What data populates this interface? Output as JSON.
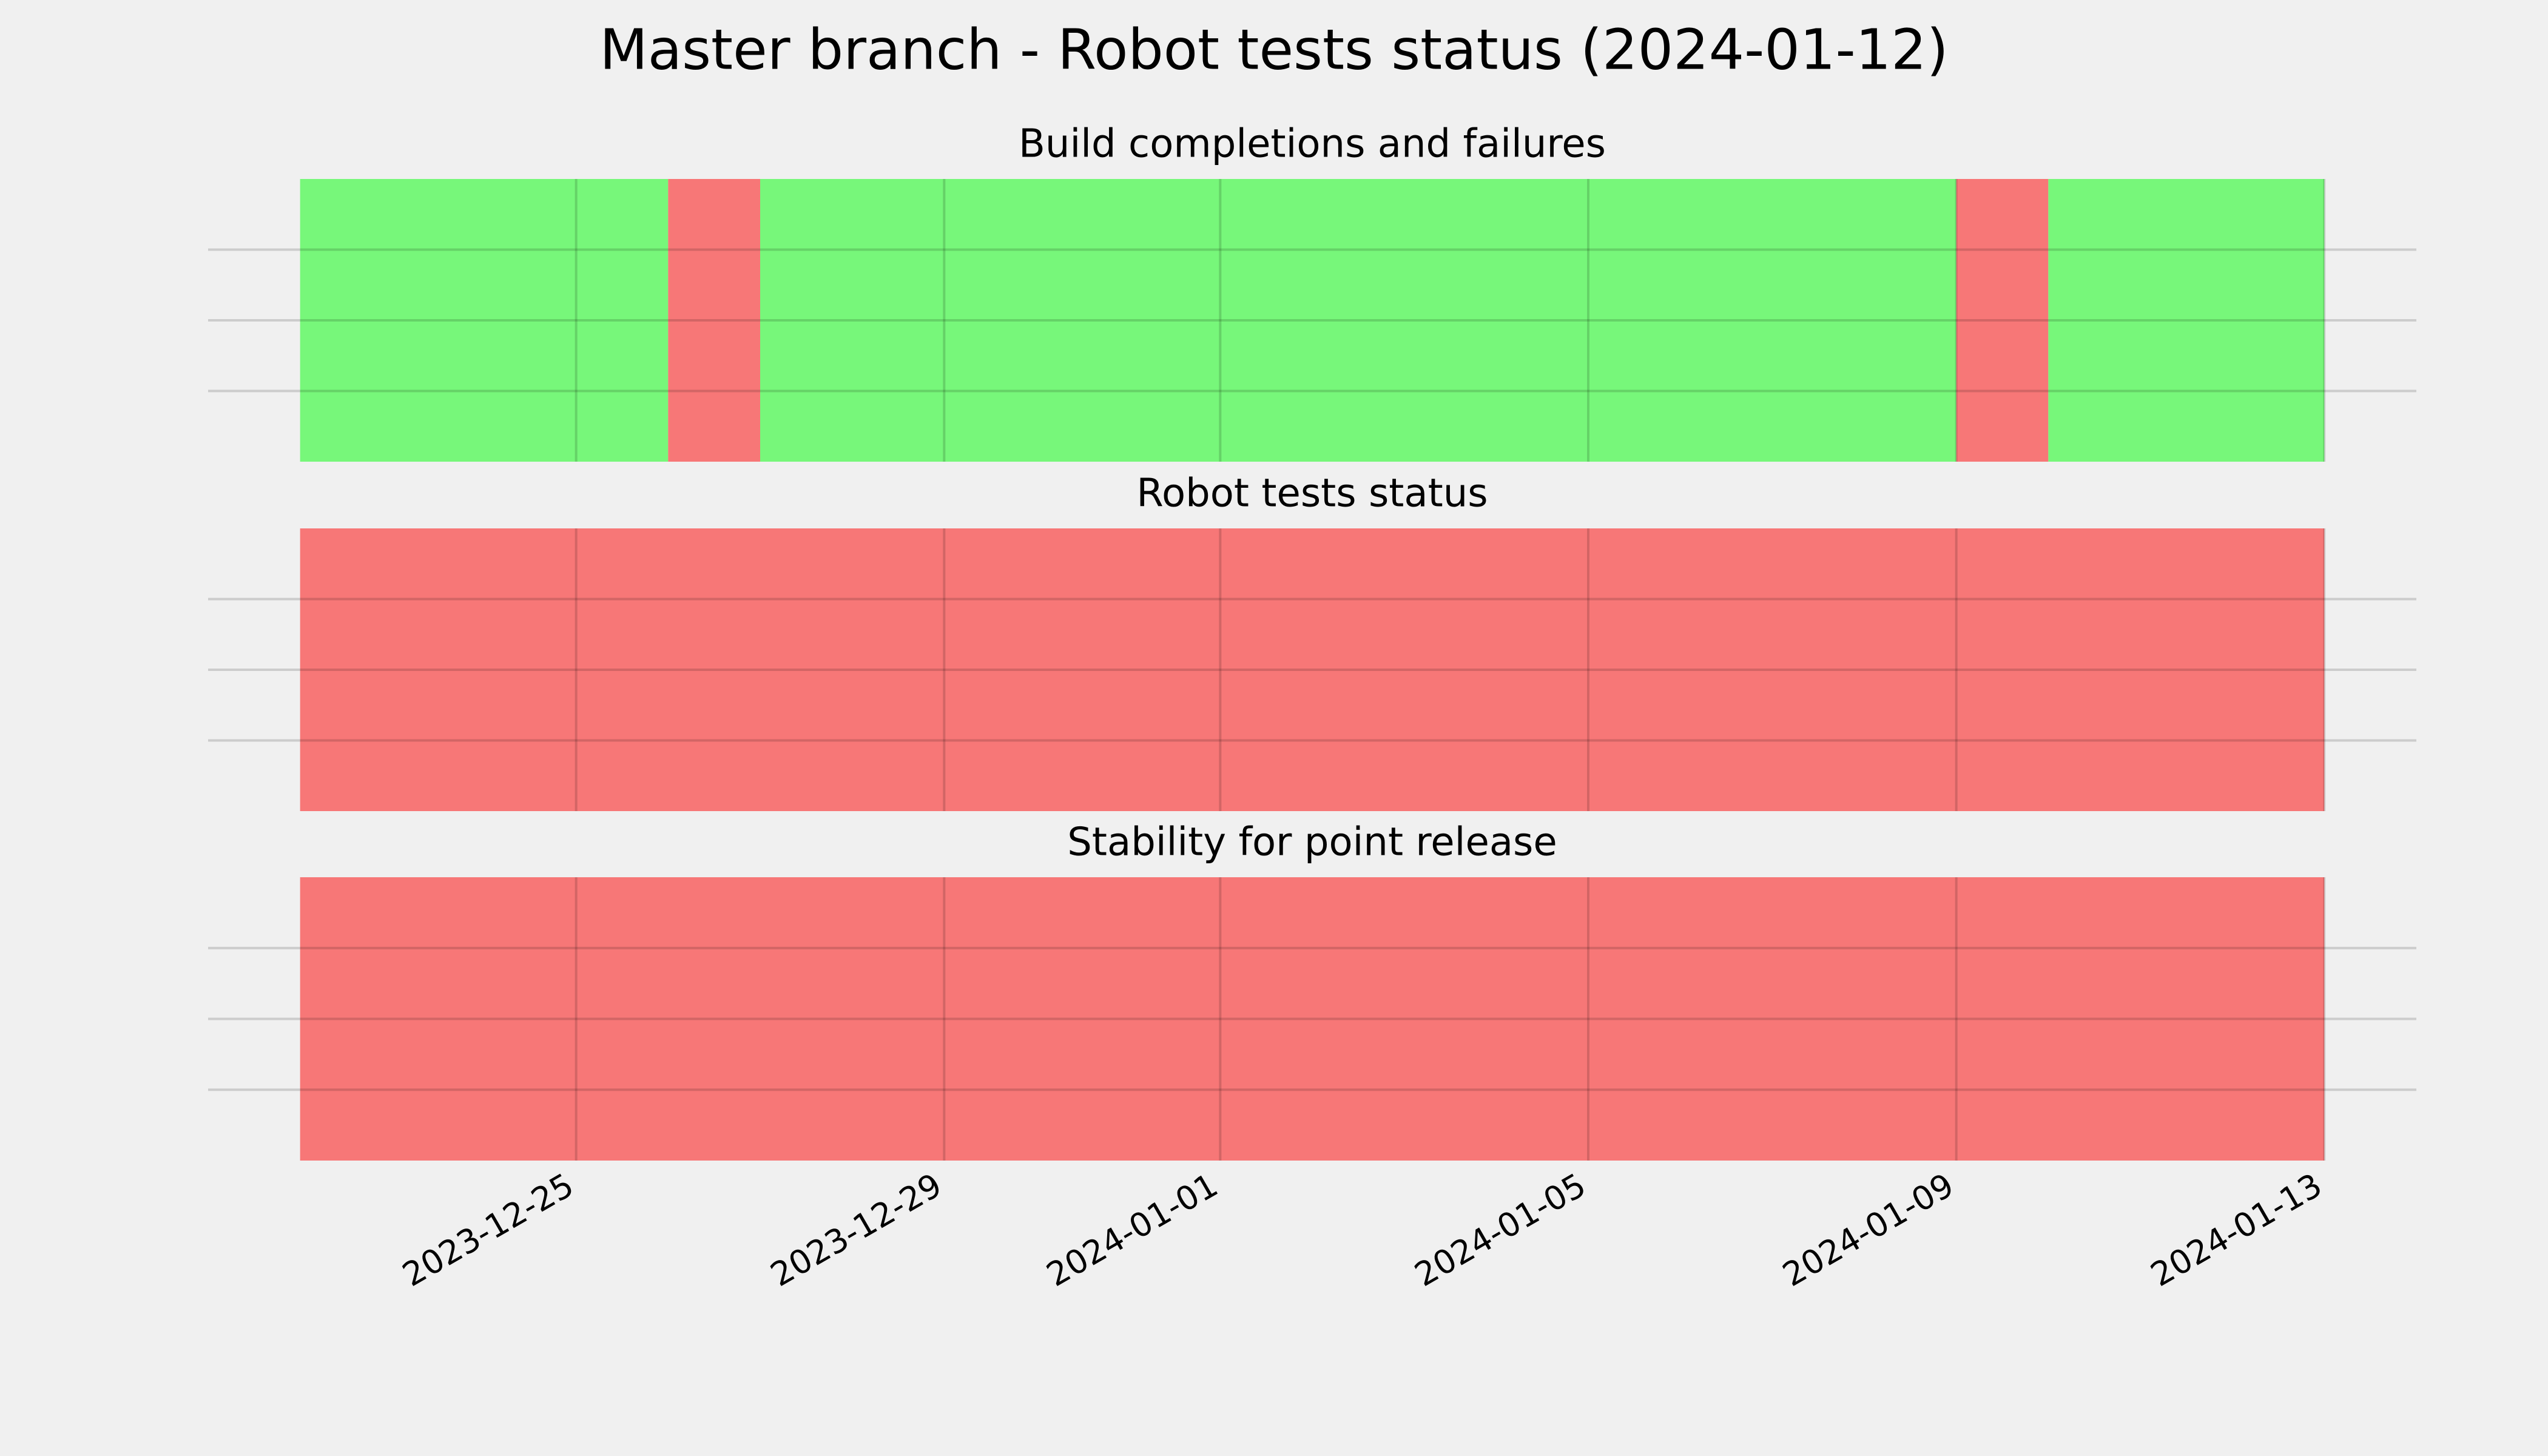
{
  "title": "Master branch - Robot tests status (2024-01-12)",
  "chart_data": [
    {
      "type": "span",
      "title": "Build completions and failures",
      "spans": [
        {
          "start": "2023-12-22",
          "end": "2023-12-26",
          "color": "#77f77a"
        },
        {
          "start": "2023-12-26",
          "end": "2023-12-27",
          "color": "#f77777"
        },
        {
          "start": "2023-12-27",
          "end": "2024-01-09",
          "color": "#77f77a"
        },
        {
          "start": "2024-01-09",
          "end": "2024-01-10",
          "color": "#f77777"
        },
        {
          "start": "2024-01-10",
          "end": "2024-01-13",
          "color": "#77f77a"
        }
      ],
      "xlim": [
        "2023-12-21",
        "2024-01-14"
      ],
      "xticks": [
        "2023-12-25",
        "2023-12-29",
        "2024-01-01",
        "2024-01-05",
        "2024-01-09",
        "2024-01-13"
      ],
      "ylim": [
        0,
        1
      ],
      "yticks": [
        0.25,
        0.5,
        0.75
      ],
      "grid": true
    },
    {
      "type": "span",
      "title": "Robot tests status",
      "spans": [
        {
          "start": "2023-12-22",
          "end": "2024-01-13",
          "color": "#f77777"
        }
      ],
      "xlim": [
        "2023-12-21",
        "2024-01-14"
      ],
      "xticks": [
        "2023-12-25",
        "2023-12-29",
        "2024-01-01",
        "2024-01-05",
        "2024-01-09",
        "2024-01-13"
      ],
      "ylim": [
        0,
        1
      ],
      "yticks": [
        0.25,
        0.5,
        0.75
      ],
      "grid": true
    },
    {
      "type": "span",
      "title": "Stability for point release",
      "spans": [
        {
          "start": "2023-12-22",
          "end": "2024-01-13",
          "color": "#f77777"
        }
      ],
      "xlim": [
        "2023-12-21",
        "2024-01-14"
      ],
      "xticks": [
        "2023-12-25",
        "2023-12-29",
        "2024-01-01",
        "2024-01-05",
        "2024-01-09",
        "2024-01-13"
      ],
      "ylim": [
        0,
        1
      ],
      "yticks": [
        0.25,
        0.5,
        0.75
      ],
      "grid": true,
      "show_xtick_labels": true
    }
  ]
}
